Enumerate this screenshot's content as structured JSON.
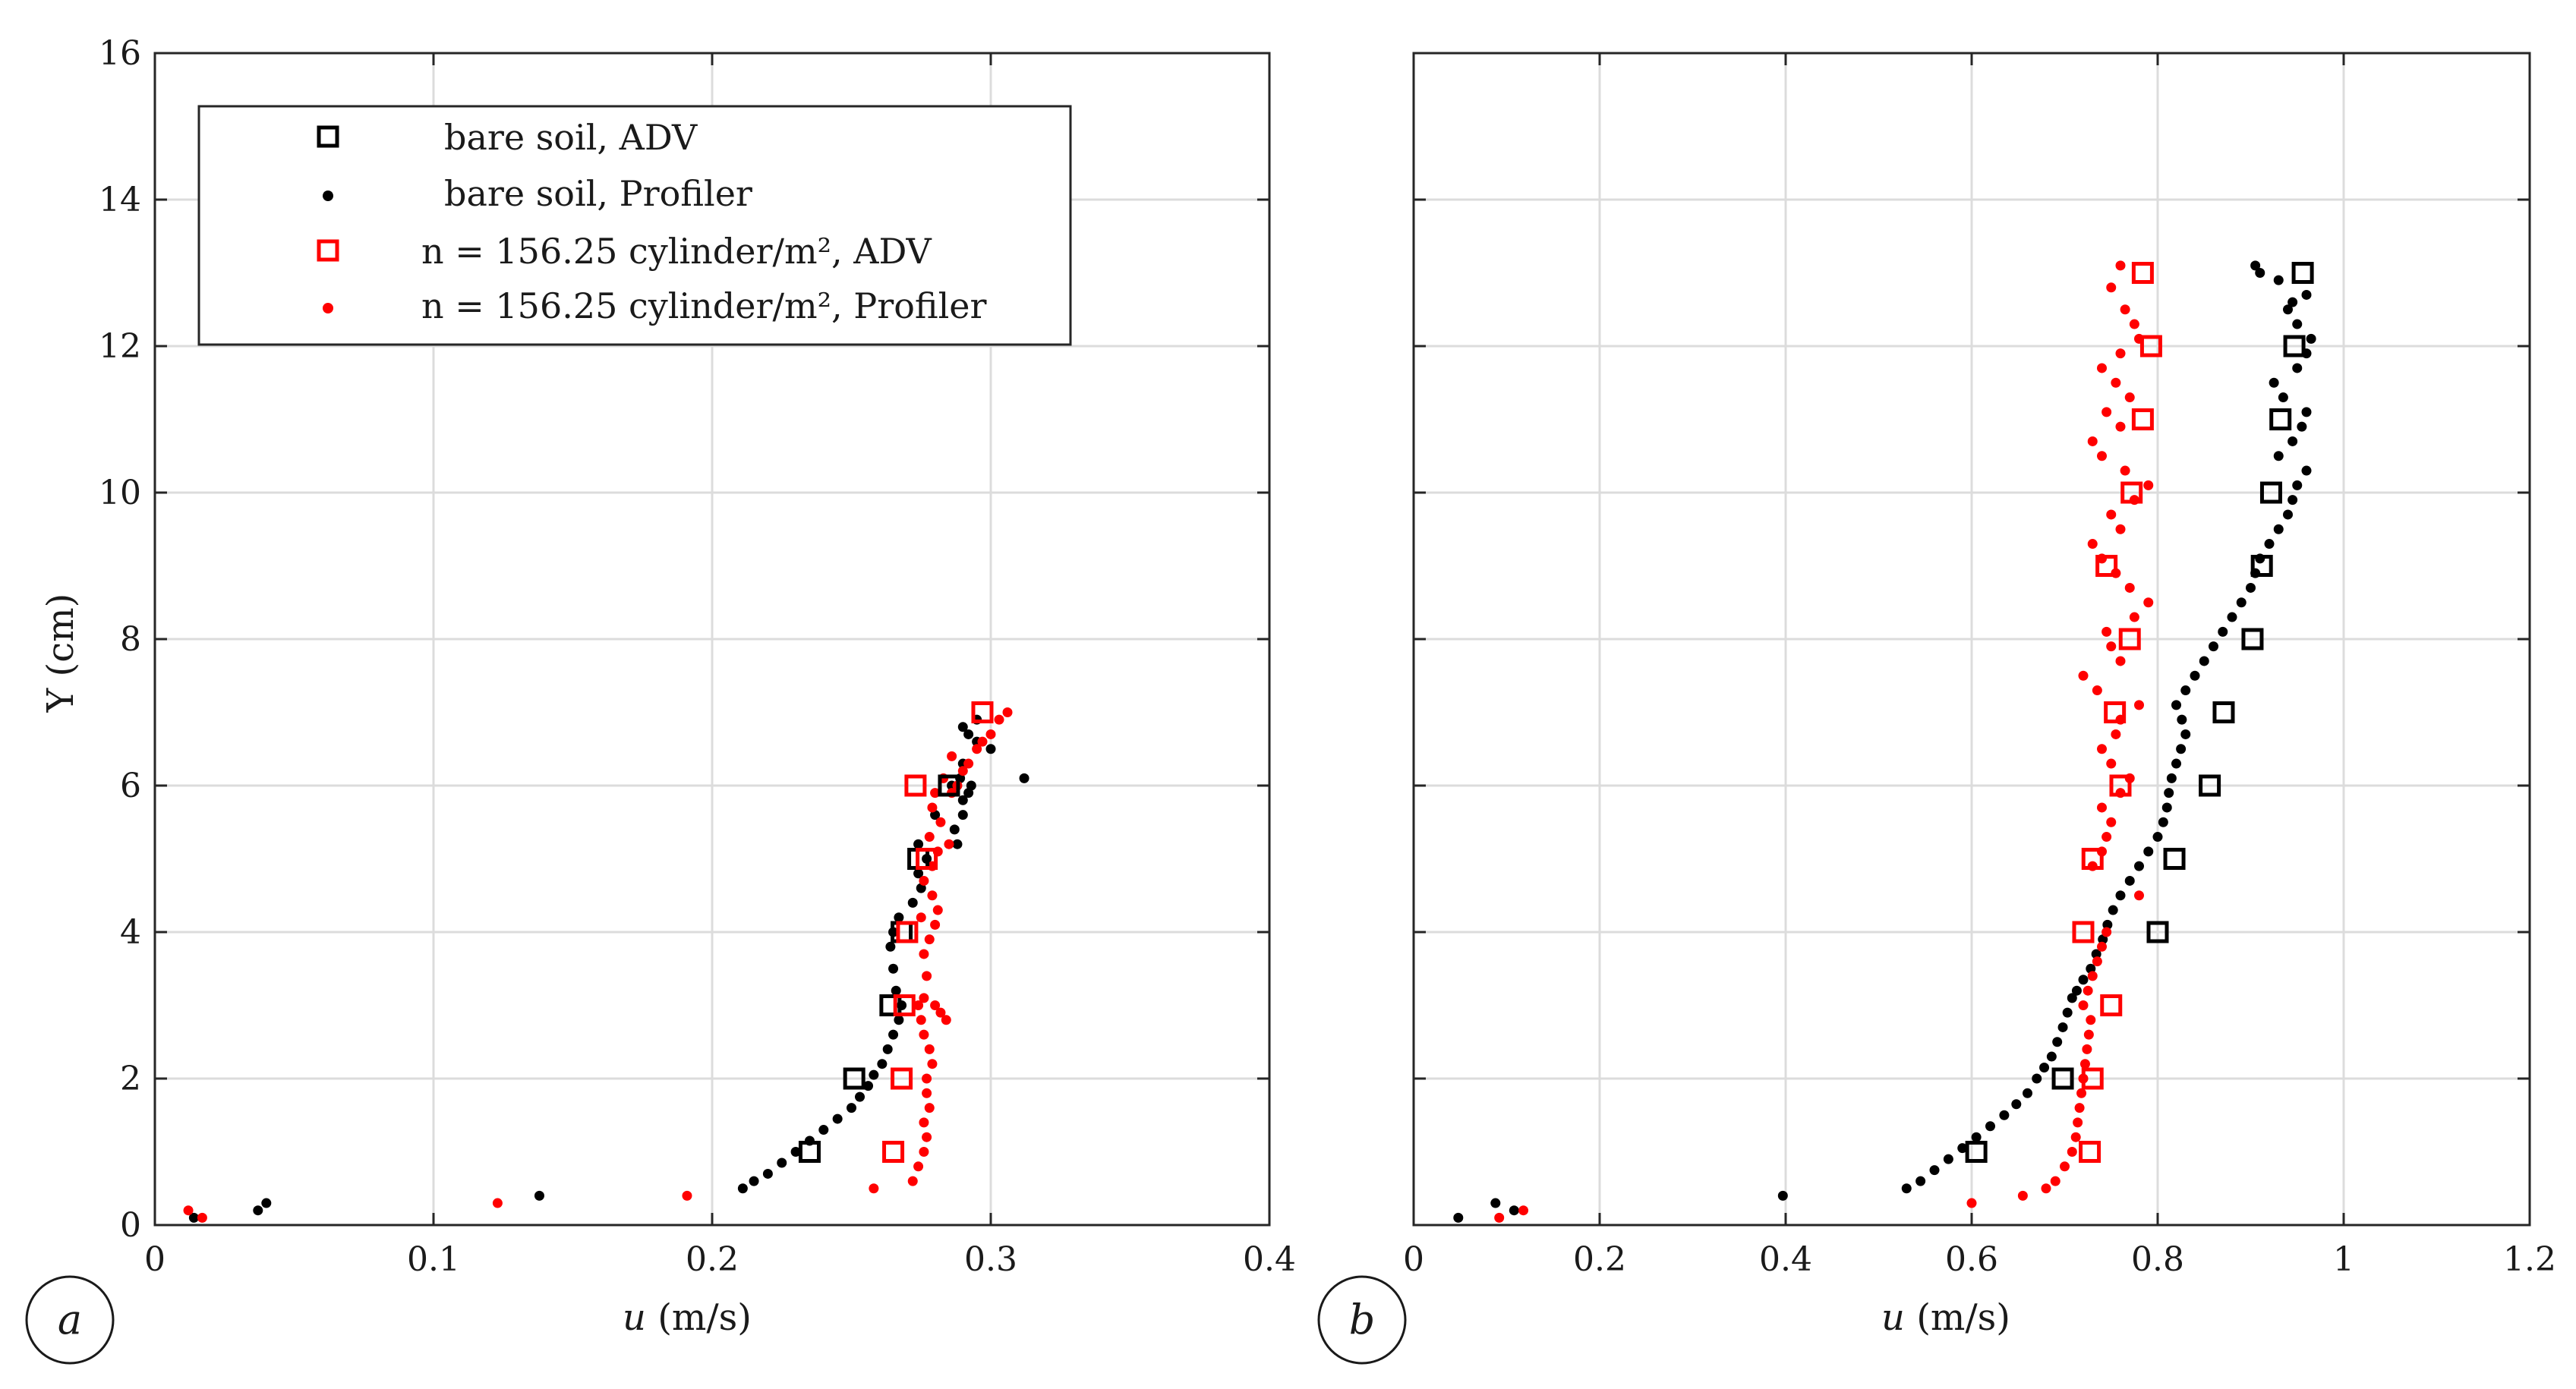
{
  "chart_data": [
    {
      "panel_label": "a",
      "type": "scatter",
      "title": "",
      "xlabel": "u (m/s)",
      "ylabel": "Y (cm)",
      "xlim": [
        0,
        0.4
      ],
      "ylim": [
        0,
        16
      ],
      "xticks": [
        0,
        0.1,
        0.2,
        0.3,
        0.4
      ],
      "xtick_labels": [
        "0",
        "0.1",
        "0.2",
        "0.3",
        "0.4"
      ],
      "yticks": [
        0,
        2,
        4,
        6,
        8,
        10,
        12,
        14,
        16
      ],
      "ytick_labels": [
        "0",
        "2",
        "4",
        "6",
        "8",
        "10",
        "12",
        "14",
        "16"
      ],
      "grid": true,
      "legend": {
        "placement": "top-left",
        "entries": [
          {
            "label": "bare soil, ADV",
            "marker": "square",
            "color": "#000000"
          },
          {
            "label": "bare soil, Profiler",
            "marker": "dot",
            "color": "#000000"
          },
          {
            "label": "n = 156.25 cylinder/m², ADV",
            "marker": "square",
            "color": "#ff0000"
          },
          {
            "label": "n = 156.25 cylinder/m², Profiler",
            "marker": "dot",
            "color": "#ff0000"
          }
        ]
      },
      "series": [
        {
          "name": "bare soil, ADV",
          "marker": "square",
          "color": "#000000",
          "x": [
            0.235,
            0.251,
            0.264,
            0.268,
            0.274,
            0.285
          ],
          "y": [
            1,
            2,
            3,
            4,
            5,
            6
          ]
        },
        {
          "name": "bare soil, Profiler",
          "marker": "dot",
          "color": "#000000",
          "x": [
            0.014,
            0.037,
            0.04,
            0.138,
            0.211,
            0.215,
            0.22,
            0.225,
            0.23,
            0.235,
            0.24,
            0.245,
            0.25,
            0.253,
            0.256,
            0.258,
            0.261,
            0.263,
            0.265,
            0.267,
            0.268,
            0.266,
            0.265,
            0.264,
            0.265,
            0.267,
            0.272,
            0.275,
            0.274,
            0.277,
            0.274,
            0.288,
            0.287,
            0.28,
            0.29,
            0.29,
            0.292,
            0.286,
            0.289,
            0.293,
            0.312,
            0.3,
            0.29,
            0.295,
            0.292,
            0.29,
            0.295
          ],
          "y": [
            0.1,
            0.2,
            0.3,
            0.4,
            0.5,
            0.6,
            0.7,
            0.85,
            1.0,
            1.15,
            1.3,
            1.45,
            1.6,
            1.75,
            1.9,
            2.05,
            2.2,
            2.4,
            2.6,
            2.8,
            3.0,
            3.2,
            3.5,
            3.8,
            4.0,
            4.2,
            4.4,
            4.6,
            4.8,
            5.0,
            5.2,
            5.2,
            5.4,
            5.6,
            5.6,
            5.8,
            5.9,
            6.0,
            6.1,
            6.0,
            6.1,
            6.5,
            6.3,
            6.6,
            6.7,
            6.8,
            6.9
          ]
        },
        {
          "name": "n = 156.25 cylinder/m², ADV",
          "marker": "square",
          "color": "#ff0000",
          "x": [
            0.265,
            0.268,
            0.269,
            0.27,
            0.277,
            0.273,
            0.297
          ],
          "y": [
            1,
            2,
            3,
            4,
            5,
            6,
            7
          ]
        },
        {
          "name": "n = 156.25 cylinder/m², Profiler",
          "marker": "dot",
          "color": "#ff0000",
          "x": [
            0.012,
            0.017,
            0.123,
            0.191,
            0.258,
            0.272,
            0.274,
            0.276,
            0.277,
            0.276,
            0.278,
            0.277,
            0.277,
            0.279,
            0.278,
            0.276,
            0.275,
            0.274,
            0.276,
            0.28,
            0.282,
            0.284,
            0.277,
            0.276,
            0.278,
            0.28,
            0.275,
            0.281,
            0.279,
            0.276,
            0.279,
            0.281,
            0.278,
            0.285,
            0.282,
            0.279,
            0.28,
            0.286,
            0.283,
            0.288,
            0.29,
            0.286,
            0.292,
            0.295,
            0.297,
            0.3,
            0.303,
            0.306
          ],
          "y": [
            0.2,
            0.1,
            0.3,
            0.4,
            0.5,
            0.6,
            0.8,
            1.0,
            1.2,
            1.4,
            1.6,
            1.8,
            2.0,
            2.2,
            2.4,
            2.6,
            2.8,
            3.0,
            3.1,
            3.0,
            2.9,
            2.8,
            3.4,
            3.7,
            3.9,
            4.1,
            4.2,
            4.3,
            4.5,
            4.7,
            4.9,
            5.1,
            5.3,
            5.2,
            5.5,
            5.7,
            5.9,
            5.9,
            6.1,
            6.0,
            6.2,
            6.4,
            6.3,
            6.5,
            6.6,
            6.7,
            6.9,
            7.0
          ]
        }
      ]
    },
    {
      "panel_label": "b",
      "type": "scatter",
      "title": "",
      "xlabel": "u (m/s)",
      "ylabel": "",
      "xlim": [
        0,
        1.2
      ],
      "ylim": [
        0,
        16
      ],
      "xticks": [
        0,
        0.2,
        0.4,
        0.6,
        0.8,
        1,
        1.2
      ],
      "xtick_labels": [
        "0",
        "0.2",
        "0.4",
        "0.6",
        "0.8",
        "1",
        "1.2"
      ],
      "yticks": [
        0,
        2,
        4,
        6,
        8,
        10,
        12,
        14,
        16
      ],
      "grid": true,
      "series": [
        {
          "name": "bare soil, ADV",
          "marker": "square",
          "color": "#000000",
          "x": [
            0.605,
            0.698,
            0.8,
            0.818,
            0.856,
            0.871,
            0.902,
            0.912,
            0.922,
            0.932,
            0.947,
            0.956
          ],
          "y": [
            1,
            2,
            4,
            5,
            6,
            7,
            8,
            9,
            10,
            11,
            12,
            13
          ]
        },
        {
          "name": "bare soil, Profiler",
          "marker": "dot",
          "color": "#000000",
          "x": [
            0.048,
            0.088,
            0.108,
            0.397,
            0.53,
            0.545,
            0.56,
            0.575,
            0.59,
            0.605,
            0.62,
            0.635,
            0.648,
            0.66,
            0.67,
            0.678,
            0.686,
            0.692,
            0.698,
            0.703,
            0.708,
            0.713,
            0.72,
            0.728,
            0.734,
            0.741,
            0.746,
            0.752,
            0.76,
            0.77,
            0.78,
            0.79,
            0.8,
            0.806,
            0.81,
            0.812,
            0.815,
            0.82,
            0.825,
            0.83,
            0.826,
            0.82,
            0.83,
            0.84,
            0.85,
            0.86,
            0.87,
            0.88,
            0.89,
            0.9,
            0.905,
            0.91,
            0.92,
            0.93,
            0.94,
            0.945,
            0.95,
            0.96,
            0.93,
            0.945,
            0.955,
            0.96,
            0.935,
            0.925,
            0.95,
            0.96,
            0.965,
            0.95,
            0.94,
            0.96,
            0.93,
            0.945,
            0.91,
            0.905
          ],
          "y": [
            0.1,
            0.3,
            0.2,
            0.4,
            0.5,
            0.6,
            0.75,
            0.9,
            1.05,
            1.2,
            1.35,
            1.5,
            1.65,
            1.8,
            2.0,
            2.15,
            2.3,
            2.5,
            2.7,
            2.9,
            3.1,
            3.2,
            3.35,
            3.5,
            3.7,
            3.9,
            4.1,
            4.3,
            4.5,
            4.7,
            4.9,
            5.1,
            5.3,
            5.5,
            5.7,
            5.9,
            6.1,
            6.3,
            6.5,
            6.7,
            6.9,
            7.1,
            7.3,
            7.5,
            7.7,
            7.9,
            8.1,
            8.3,
            8.5,
            8.7,
            8.9,
            9.1,
            9.3,
            9.5,
            9.7,
            9.9,
            10.1,
            10.3,
            10.5,
            10.7,
            10.9,
            11.1,
            11.3,
            11.5,
            11.7,
            11.9,
            12.1,
            12.3,
            12.5,
            12.7,
            12.9,
            12.6,
            13.0,
            13.1
          ]
        },
        {
          "name": "n = 156.25 cylinder/m², ADV",
          "marker": "square",
          "color": "#ff0000",
          "x": [
            0.727,
            0.73,
            0.75,
            0.72,
            0.73,
            0.76,
            0.754,
            0.77,
            0.745,
            0.772,
            0.784,
            0.793,
            0.784
          ],
          "y": [
            1,
            2,
            3,
            4,
            5,
            6,
            7,
            8,
            9,
            10,
            11,
            12,
            13
          ]
        },
        {
          "name": "n = 156.25 cylinder/m², Profiler",
          "marker": "dot",
          "color": "#ff0000",
          "x": [
            0.092,
            0.118,
            0.6,
            0.655,
            0.68,
            0.69,
            0.7,
            0.708,
            0.712,
            0.714,
            0.716,
            0.718,
            0.72,
            0.722,
            0.724,
            0.726,
            0.728,
            0.72,
            0.725,
            0.73,
            0.735,
            0.74,
            0.745,
            0.78,
            0.73,
            0.74,
            0.745,
            0.75,
            0.74,
            0.76,
            0.77,
            0.75,
            0.74,
            0.755,
            0.76,
            0.78,
            0.735,
            0.72,
            0.76,
            0.75,
            0.745,
            0.775,
            0.79,
            0.77,
            0.755,
            0.74,
            0.73,
            0.76,
            0.75,
            0.775,
            0.79,
            0.765,
            0.74,
            0.73,
            0.76,
            0.745,
            0.77,
            0.755,
            0.74,
            0.76,
            0.78,
            0.775,
            0.765,
            0.75,
            0.76
          ],
          "y": [
            0.1,
            0.2,
            0.3,
            0.4,
            0.5,
            0.6,
            0.8,
            1.0,
            1.2,
            1.4,
            1.6,
            1.8,
            2.0,
            2.2,
            2.4,
            2.6,
            2.8,
            3.0,
            3.2,
            3.4,
            3.6,
            3.8,
            4.0,
            4.5,
            4.9,
            5.1,
            5.3,
            5.5,
            5.7,
            5.9,
            6.1,
            6.3,
            6.5,
            6.7,
            6.9,
            7.1,
            7.3,
            7.5,
            7.7,
            7.9,
            8.1,
            8.3,
            8.5,
            8.7,
            8.9,
            9.1,
            9.3,
            9.5,
            9.7,
            9.9,
            10.1,
            10.3,
            10.5,
            10.7,
            10.9,
            11.1,
            11.3,
            11.5,
            11.7,
            11.9,
            12.1,
            12.3,
            12.5,
            12.8,
            13.1
          ]
        }
      ]
    }
  ]
}
